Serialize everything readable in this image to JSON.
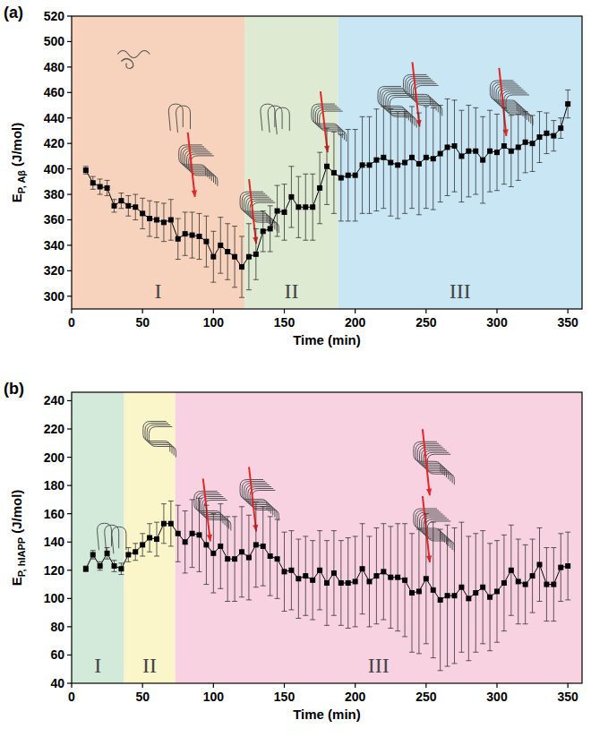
{
  "chart_data": [
    {
      "type": "line",
      "panel_label": "(a)",
      "x_label": "Time (min)",
      "y_label": {
        "text": "E",
        "subscript": "P, Aβ",
        "suffix": "(J/mol)"
      },
      "xlim": [
        0,
        360
      ],
      "ylim": [
        290,
        520
      ],
      "xticks": [
        0,
        50,
        100,
        150,
        200,
        250,
        300,
        350
      ],
      "yticks": [
        300,
        320,
        340,
        360,
        380,
        400,
        420,
        440,
        460,
        480,
        500,
        520
      ],
      "regions": [
        {
          "label": "I",
          "start": 0,
          "end": 122,
          "color": "#f7d3bd"
        },
        {
          "label": "II",
          "start": 122,
          "end": 188,
          "color": "#dfead2"
        },
        {
          "label": "III",
          "start": 188,
          "end": 360,
          "color": "#c9e6f5"
        }
      ],
      "x": [
        10,
        15,
        20,
        25,
        30,
        35,
        40,
        45,
        50,
        55,
        60,
        65,
        70,
        75,
        80,
        85,
        90,
        95,
        100,
        105,
        110,
        115,
        120,
        125,
        130,
        135,
        140,
        145,
        150,
        155,
        160,
        165,
        170,
        175,
        180,
        185,
        190,
        195,
        200,
        205,
        210,
        215,
        220,
        225,
        230,
        235,
        240,
        245,
        250,
        255,
        260,
        265,
        270,
        275,
        280,
        285,
        290,
        295,
        300,
        305,
        310,
        315,
        320,
        325,
        330,
        335,
        340,
        345,
        350
      ],
      "series": [
        {
          "color": "#000000",
          "marker": "square",
          "line_style": "solid",
          "values": [
            399,
            389,
            386,
            385,
            371,
            375,
            371,
            370,
            365,
            361,
            360,
            358,
            360,
            345,
            349,
            348,
            347,
            343,
            331,
            340,
            335,
            331,
            323,
            331,
            333,
            351,
            353,
            367,
            366,
            378,
            370,
            370,
            370,
            385,
            402,
            397,
            393,
            395,
            395,
            403,
            403,
            407,
            409,
            405,
            403,
            405,
            409,
            404,
            409,
            408,
            412,
            417,
            418,
            410,
            414,
            414,
            407,
            414,
            413,
            418,
            414,
            417,
            421,
            420,
            425,
            428,
            426,
            432,
            451
          ],
          "errors": [
            3,
            5,
            6,
            6,
            5,
            6,
            8,
            10,
            12,
            14,
            14,
            15,
            16,
            16,
            17,
            18,
            18,
            20,
            20,
            22,
            22,
            24,
            24,
            26,
            20,
            16,
            18,
            20,
            22,
            24,
            24,
            26,
            26,
            28,
            30,
            32,
            34,
            36,
            36,
            38,
            38,
            40,
            40,
            42,
            42,
            40,
            40,
            40,
            40,
            40,
            38,
            38,
            36,
            36,
            36,
            34,
            34,
            32,
            30,
            30,
            28,
            26,
            24,
            22,
            20,
            16,
            12,
            8,
            11
          ]
        }
      ]
    },
    {
      "type": "line",
      "panel_label": "(b)",
      "x_label": "Time (min)",
      "y_label": {
        "text": "E",
        "subscript": "P, hIAPP",
        "suffix": "(J/mol)"
      },
      "xlim": [
        0,
        360
      ],
      "ylim": [
        40,
        246
      ],
      "xticks": [
        0,
        50,
        100,
        150,
        200,
        250,
        300,
        350
      ],
      "yticks": [
        40,
        60,
        80,
        100,
        120,
        140,
        160,
        180,
        200,
        220,
        240
      ],
      "regions": [
        {
          "label": "I",
          "start": 0,
          "end": 37,
          "color": "#d3eadb"
        },
        {
          "label": "II",
          "start": 37,
          "end": 73,
          "color": "#fbf6c9"
        },
        {
          "label": "III",
          "start": 73,
          "end": 360,
          "color": "#f9d2e2"
        }
      ],
      "x": [
        10,
        15,
        20,
        25,
        30,
        35,
        40,
        45,
        50,
        55,
        60,
        65,
        70,
        75,
        80,
        85,
        90,
        95,
        100,
        105,
        110,
        115,
        120,
        125,
        130,
        135,
        140,
        145,
        150,
        155,
        160,
        165,
        170,
        175,
        180,
        185,
        190,
        195,
        200,
        205,
        210,
        215,
        220,
        225,
        230,
        235,
        240,
        245,
        250,
        255,
        260,
        265,
        270,
        275,
        280,
        285,
        290,
        295,
        300,
        305,
        310,
        315,
        320,
        325,
        330,
        335,
        340,
        345,
        350
      ],
      "series": [
        {
          "color": "#000000",
          "marker": "square",
          "line_style": "solid",
          "values": [
            121,
            131,
            123,
            132,
            123,
            121,
            131,
            133,
            138,
            143,
            142,
            153,
            153,
            146,
            140,
            146,
            145,
            138,
            132,
            137,
            128,
            128,
            133,
            129,
            138,
            137,
            130,
            128,
            119,
            120,
            114,
            116,
            113,
            120,
            111,
            118,
            111,
            111,
            112,
            121,
            112,
            116,
            119,
            115,
            115,
            113,
            104,
            105,
            114,
            106,
            99,
            102,
            102,
            108,
            100,
            104,
            108,
            101,
            105,
            111,
            120,
            112,
            110,
            116,
            124,
            110,
            110,
            122,
            123
          ],
          "errors": [
            2,
            3,
            3,
            4,
            4,
            4,
            5,
            6,
            8,
            10,
            12,
            14,
            16,
            20,
            22,
            24,
            26,
            28,
            28,
            30,
            30,
            30,
            32,
            30,
            30,
            28,
            28,
            28,
            28,
            28,
            28,
            28,
            28,
            28,
            30,
            30,
            30,
            32,
            32,
            32,
            32,
            34,
            34,
            36,
            38,
            40,
            42,
            44,
            46,
            48,
            50,
            50,
            48,
            46,
            44,
            42,
            40,
            38,
            36,
            34,
            32,
            30,
            28,
            26,
            26,
            26,
            26,
            24,
            24
          ]
        }
      ]
    }
  ]
}
